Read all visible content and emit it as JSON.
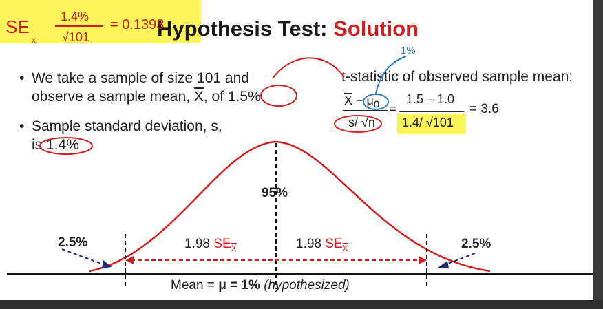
{
  "slide": {
    "title_part1": "Hypothesis Test: ",
    "title_part2": "Solution"
  },
  "bullets": {
    "b1_line1": "We take a sample of size 101 and",
    "b1_line2_pre": "observe a sample mean, ",
    "b1_line2_xbar": "X",
    "b1_line2_post": ", of 1.5%",
    "b2_line1": "Sample standard deviation, s,",
    "b2_line2": "is 1.4%"
  },
  "tstat": {
    "title": "t-statistic of observed sample mean:",
    "num_xbar": "X",
    "num_rest": " − μ",
    "num_sub": "0",
    "den_formula": "s/ √n",
    "equals1": "=",
    "num_values": "1.5 – 1.0",
    "den_values": "1.4/ √101",
    "equals2": "= 3.6"
  },
  "handwriting": {
    "se_lhs": "SE",
    "se_sub": "x",
    "se_num": "1.4%",
    "se_den": "√101",
    "se_result": "= 0.1393",
    "note_top": "1%"
  },
  "diagram": {
    "center_label": "95%",
    "left_tail": "2.5%",
    "right_tail": "2.5%",
    "left_se_num": "1.98 ",
    "left_se": "SE",
    "left_se_sub": "X",
    "right_se_num": "1.98 ",
    "right_se": "SE",
    "right_se_sub": "X",
    "mean_pre": "Mean = ",
    "mean_bold": "μ = 1%",
    "mean_post": " (hypothesized)"
  },
  "colors": {
    "red": "#d11e1e",
    "highlight": "#fbf45a",
    "ink_blue": "#2c7bc4",
    "dark_blue": "#1f2a6b"
  }
}
